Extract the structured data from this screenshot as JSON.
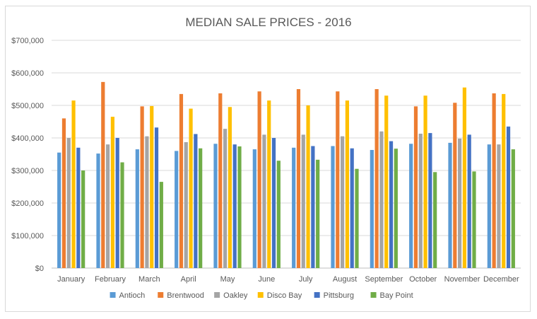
{
  "chart_data": {
    "type": "bar",
    "title": "MEDIAN SALE PRICES - 2016",
    "xlabel": "",
    "ylabel": "",
    "ylim": [
      0,
      700000
    ],
    "yticks": [
      0,
      100000,
      200000,
      300000,
      400000,
      500000,
      600000,
      700000
    ],
    "ytick_labels": [
      "$0",
      "$100,000",
      "$200,000",
      "$300,000",
      "$400,000",
      "$500,000",
      "$600,000",
      "$700,000"
    ],
    "grid": true,
    "legend_position": "bottom",
    "categories": [
      "January",
      "February",
      "March",
      "April",
      "May",
      "June",
      "July",
      "August",
      "September",
      "October",
      "November",
      "December"
    ],
    "series": [
      {
        "name": "Antioch",
        "color": "#5b9bd5",
        "values": [
          355000,
          352000,
          365000,
          360000,
          382000,
          365000,
          370000,
          375000,
          363000,
          382000,
          385000,
          380000
        ]
      },
      {
        "name": "Brentwood",
        "color": "#ed7d31",
        "values": [
          460000,
          572000,
          497000,
          535000,
          537000,
          543000,
          550000,
          543000,
          550000,
          497000,
          508000,
          537000
        ]
      },
      {
        "name": "Oakley",
        "color": "#a5a5a5",
        "values": [
          400000,
          380000,
          405000,
          387000,
          428000,
          410000,
          410000,
          405000,
          420000,
          413000,
          398000,
          380000
        ]
      },
      {
        "name": "Disco Bay",
        "color": "#ffc000",
        "values": [
          515000,
          465000,
          498000,
          490000,
          495000,
          515000,
          500000,
          515000,
          530000,
          530000,
          555000,
          535000
        ]
      },
      {
        "name": "Pittsburg",
        "color": "#4472c4",
        "values": [
          370000,
          400000,
          432000,
          412000,
          380000,
          400000,
          375000,
          368000,
          390000,
          415000,
          410000,
          435000
        ]
      },
      {
        "name": "Bay Point",
        "color": "#70ad47",
        "values": [
          300000,
          325000,
          265000,
          368000,
          374000,
          330000,
          333000,
          305000,
          367000,
          295000,
          297000,
          365000
        ]
      }
    ]
  }
}
